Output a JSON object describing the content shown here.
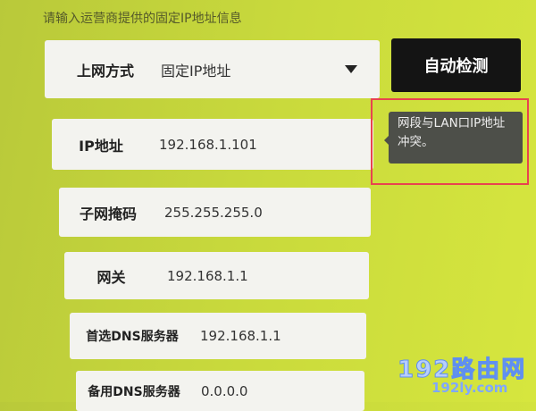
{
  "hint": "请输入运营商提供的固定IP地址信息",
  "connection": {
    "label": "上网方式",
    "value": "固定IP地址",
    "icon": "triangle-down-icon"
  },
  "auto_detect_label": "自动检测",
  "fields": [
    {
      "label": "IP地址",
      "value": "192.168.1.101"
    },
    {
      "label": "子网掩码",
      "value": "255.255.255.0"
    },
    {
      "label": "网关",
      "value": "192.168.1.1"
    },
    {
      "label": "首选DNS服务器",
      "value": "192.168.1.1"
    },
    {
      "label": "备用DNS服务器",
      "value": "0.0.0.0"
    }
  ],
  "error_tooltip": "网段与LAN口IP地址冲突。",
  "watermark": {
    "title": "192路由网",
    "url": "192ly.com"
  },
  "colors": {
    "background": "#c9da3c",
    "button": "#141414",
    "highlight": "#e8434f",
    "watermark": "#7fa8ff"
  }
}
